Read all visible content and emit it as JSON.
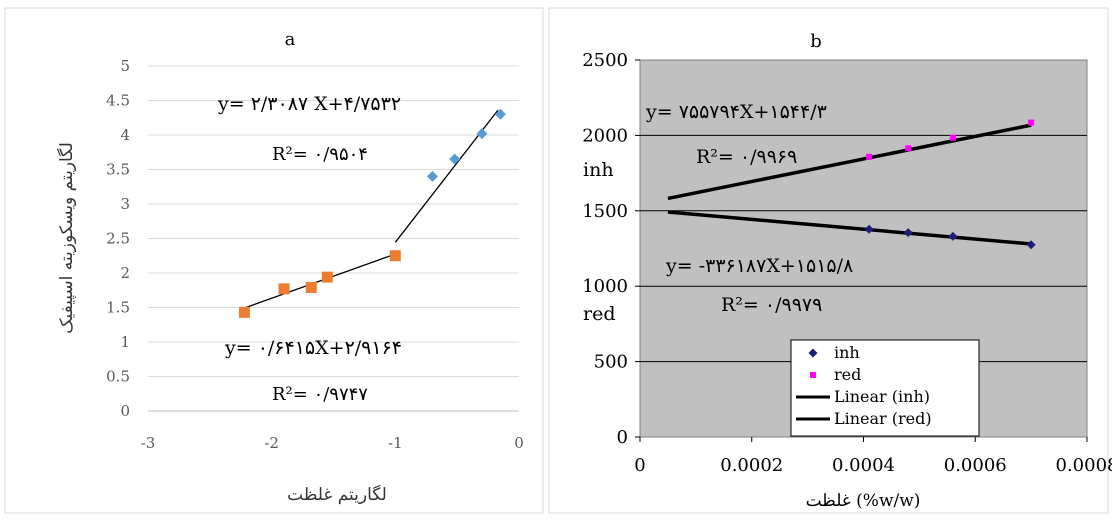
{
  "chart_data": [
    {
      "id": "a",
      "type": "scatter",
      "title": "a",
      "xlabel": "لگاریتم غلظت",
      "ylabel": "لگاریتم ویسکوزیته اسپیفیک",
      "xlim": [
        -3,
        0
      ],
      "ylim": [
        0,
        5
      ],
      "xticks": [
        "-3",
        "-2",
        "-1",
        "0"
      ],
      "yticks": [
        "0",
        "0.5",
        "1",
        "1.5",
        "2",
        "2.5",
        "3",
        "3.5",
        "4",
        "4.5",
        "5"
      ],
      "grid": "horizontal",
      "series": [
        {
          "marker": "diamond",
          "color": "#5B9BD5",
          "points": [
            [
              -0.7,
              3.4
            ],
            [
              -0.52,
              3.65
            ],
            [
              -0.3,
              4.02
            ],
            [
              -0.15,
              4.3
            ]
          ],
          "fit": {
            "slope": 2.3087,
            "intercept": 4.7532,
            "x": [
              -1.0,
              -0.17
            ]
          },
          "equation": "y=  ۲/۳۰۸۷ X+۴/۷۵۳۲",
          "r2": "R²= ۰/۹۵۰۴"
        },
        {
          "marker": "square",
          "color": "#ED7D31",
          "points": [
            [
              -2.22,
              1.43
            ],
            [
              -1.9,
              1.77
            ],
            [
              -1.68,
              1.79
            ],
            [
              -1.55,
              1.94
            ],
            [
              -1.0,
              2.25
            ]
          ],
          "fit": {
            "slope": 0.6415,
            "intercept": 2.9164,
            "x": [
              -2.22,
              -1.0
            ]
          },
          "equation": "y= ۰/۶۴۱۵X+۲/۹۱۶۴",
          "r2": "R²= ۰/۹۷۴۷"
        }
      ]
    },
    {
      "id": "b",
      "type": "scatter",
      "title": "b",
      "xlabel": "غلظت (%w/w)",
      "xlim": [
        0,
        0.0008
      ],
      "ylim": [
        0,
        2500
      ],
      "xticks": [
        "0",
        "0.0002",
        "0.0004",
        "0.0006",
        "0.0008"
      ],
      "yticks": [
        "0",
        "500",
        "1000",
        "1500",
        "2000",
        "2500"
      ],
      "grid": "horizontal",
      "background": "#C0C0C0",
      "side_labels": [
        "inh",
        "red"
      ],
      "legend": [
        "inh",
        "red",
        "Linear (inh)",
        "Linear (red)"
      ],
      "legend_position": "bottom-right",
      "series": [
        {
          "name": "inh",
          "marker": "diamond",
          "color": "#1F1F7A",
          "points": [
            [
              0.00041,
              1378
            ],
            [
              0.00048,
              1355
            ],
            [
              0.00056,
              1330
            ],
            [
              0.0007,
              1275
            ]
          ],
          "fit_x": [
            5e-05,
            0.0007
          ],
          "fit_y": [
            1492,
            1280
          ],
          "equation": "y= -۳۳۶۱۸۷X+۱۵۱۵/۸",
          "r2": "R²= ۰/۹۹۷۹"
        },
        {
          "name": "red",
          "marker": "square",
          "color": "#FF00FF",
          "points": [
            [
              0.00041,
              1858
            ],
            [
              0.00048,
              1915
            ],
            [
              0.00056,
              1985
            ],
            [
              0.0007,
              2085
            ]
          ],
          "fit_x": [
            5e-05,
            0.0007
          ],
          "fit_y": [
            1582,
            2068
          ],
          "equation": "y= ۷۵۵۷۹۴X+۱۵۴۴/۳",
          "r2": "R²= ۰/۹۹۶۹"
        }
      ]
    }
  ]
}
